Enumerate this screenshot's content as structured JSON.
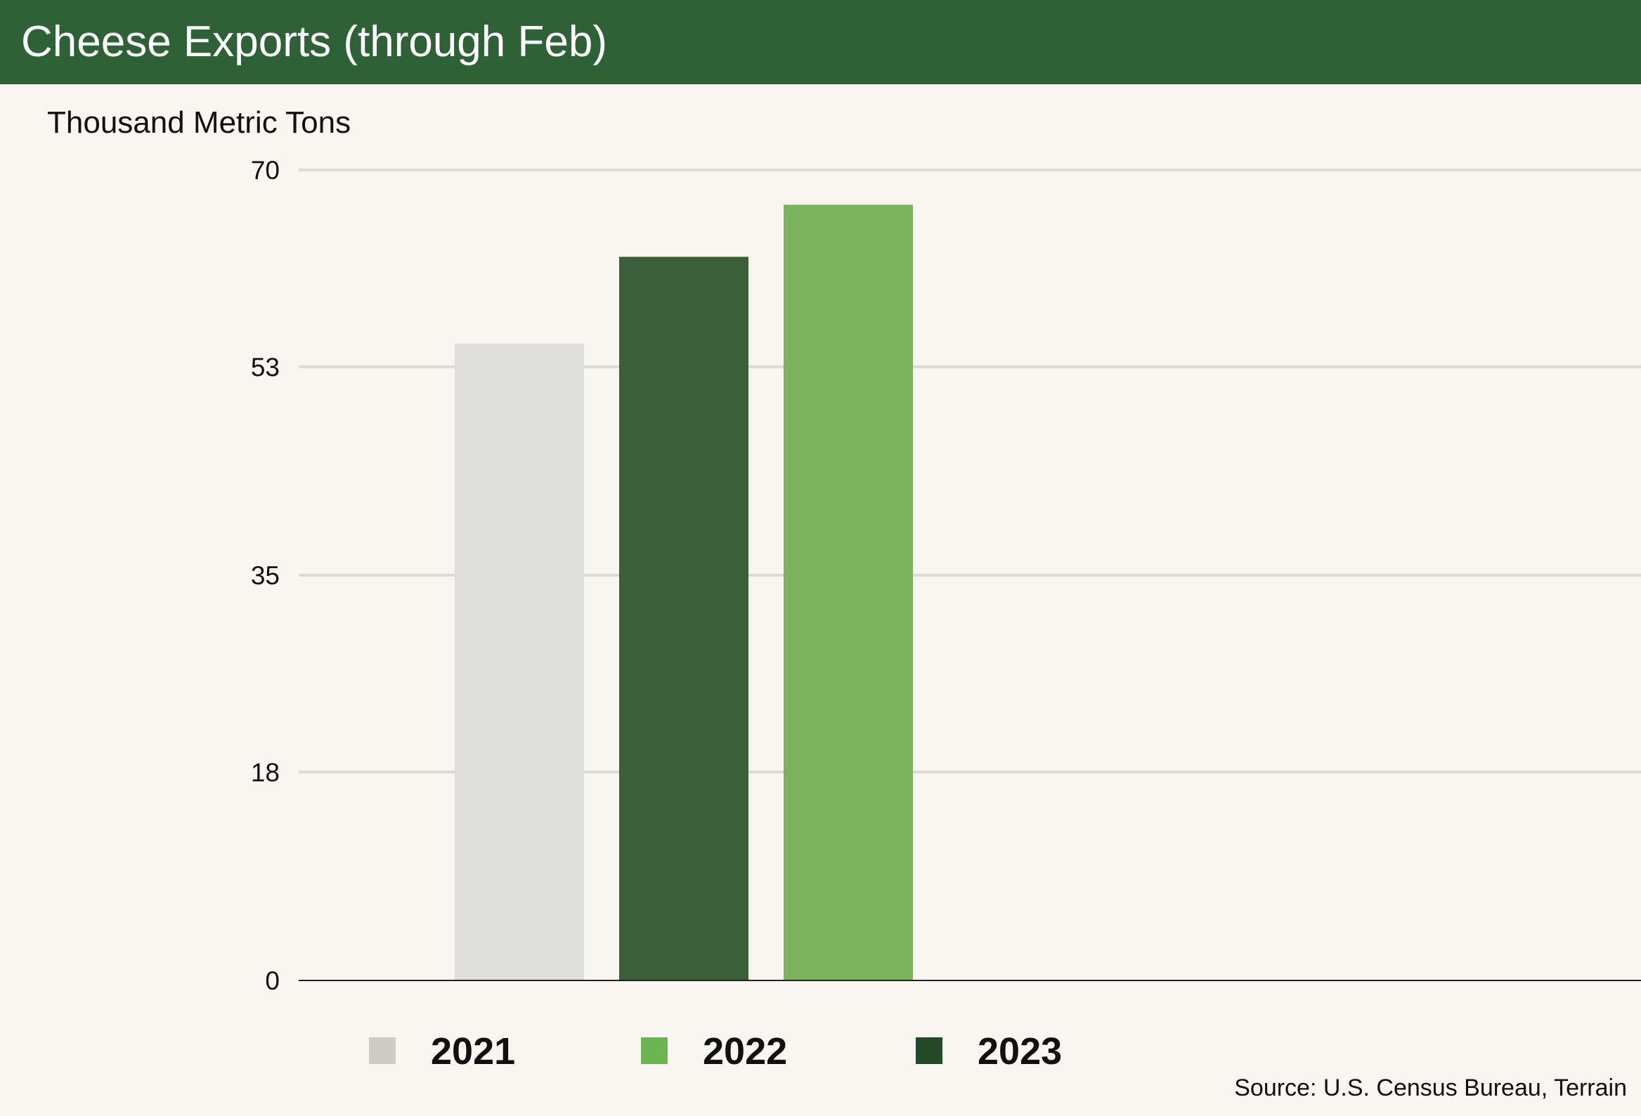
{
  "header": {
    "title": "Cheese Exports (through Feb)"
  },
  "source": "Source: U.S. Census Bureau, Terrain",
  "colors": {
    "header_bg": "#2f6136",
    "background": "#f9f5f1",
    "gridline": "#dcdad6",
    "baseline": "#222222"
  },
  "chart_data": {
    "type": "bar",
    "title": "Cheese Exports (through Feb)",
    "ylabel": "Thousand Metric Tons",
    "xlabel": "",
    "ylim": [
      0,
      70
    ],
    "yticks": [
      "0",
      "18",
      "35",
      "53",
      "70"
    ],
    "grid": true,
    "legend_position": "bottom",
    "categories": [
      "2021",
      "2022",
      "2023"
    ],
    "bars": [
      {
        "label": "2021",
        "value": 55,
        "bar_color": "#dededc"
      },
      {
        "label": "2023",
        "value": 62.5,
        "bar_color": "#3b5f39"
      },
      {
        "label": "2022",
        "value": 67,
        "bar_color": "#7ab35c"
      }
    ],
    "legend": [
      {
        "label": "2021",
        "color": "#cfcbc6"
      },
      {
        "label": "2022",
        "color": "#6db553"
      },
      {
        "label": "2023",
        "color": "#234a27"
      }
    ]
  }
}
